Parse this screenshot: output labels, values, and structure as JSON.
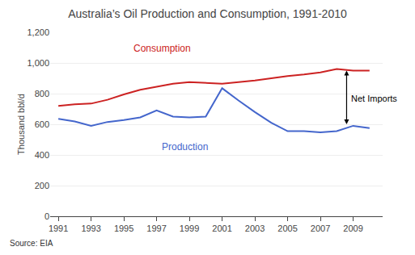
{
  "chart_data": {
    "type": "line",
    "title": "Australia’s Oil Production and Consumption, 1991-2010",
    "y_label": "Thousand bbl/d",
    "source": "Source: EIA",
    "x": [
      1991,
      1992,
      1993,
      1994,
      1995,
      1996,
      1997,
      1998,
      1999,
      2000,
      2001,
      2002,
      2003,
      2004,
      2005,
      2006,
      2007,
      2008,
      2009,
      2010
    ],
    "series": [
      {
        "name": "Consumption",
        "color": "#cc2222",
        "values": [
          720,
          730,
          735,
          760,
          795,
          825,
          845,
          865,
          875,
          870,
          865,
          875,
          885,
          900,
          915,
          925,
          938,
          960,
          950,
          950
        ],
        "label_at": {
          "x": 1995.5,
          "y": 1045
        }
      },
      {
        "name": "Production",
        "color": "#4466cc",
        "values": [
          635,
          618,
          590,
          615,
          628,
          645,
          690,
          650,
          645,
          650,
          835,
          755,
          680,
          610,
          555,
          555,
          548,
          555,
          590,
          575
        ],
        "label_at": {
          "x": 1997.2,
          "y": 498
        }
      }
    ],
    "annotations": [
      {
        "text": "Net Imports",
        "x": 2008.75,
        "y": 771,
        "arrow": {
          "x": 2008.6,
          "from": 592,
          "to": 950
        }
      }
    ],
    "xlim": [
      1990.5,
      2010.8
    ],
    "xticks": [
      1991,
      1993,
      1995,
      1997,
      1999,
      2001,
      2003,
      2005,
      2007,
      2009
    ],
    "ylim": [
      0,
      1200
    ],
    "yticks": [
      0,
      200,
      400,
      600,
      800,
      {
        "value": 1000,
        "label": "1,000"
      },
      {
        "value": 1200,
        "label": "1,200"
      }
    ],
    "grid": true
  }
}
